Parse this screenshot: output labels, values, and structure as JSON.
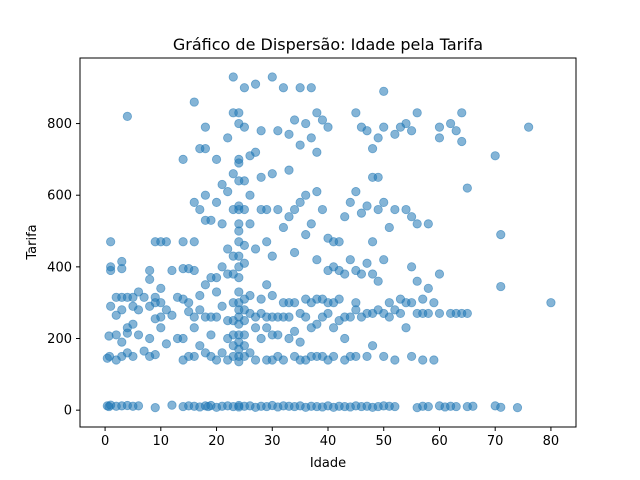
{
  "chart_data": {
    "type": "scatter",
    "title": "Gráfico de Dispersão: Idade pela Tarifa",
    "xlabel": "Idade",
    "ylabel": "Tarifa",
    "xlim": [
      -4.5,
      84.5
    ],
    "ylim": [
      -47,
      983
    ],
    "xticks": [
      0,
      10,
      20,
      30,
      40,
      50,
      60,
      70,
      80
    ],
    "yticks": [
      0,
      200,
      400,
      600,
      800
    ],
    "grid": false,
    "marker_color": "#1f77b4",
    "marker_alpha": 0.55,
    "points": [
      [
        0.4,
        12
      ],
      [
        0.7,
        10
      ],
      [
        1,
        14
      ],
      [
        2,
        11
      ],
      [
        3,
        12
      ],
      [
        4,
        13
      ],
      [
        5,
        11
      ],
      [
        6,
        12
      ],
      [
        9,
        7
      ],
      [
        12,
        14
      ],
      [
        14,
        10
      ],
      [
        15,
        12
      ],
      [
        16,
        11
      ],
      [
        17,
        9
      ],
      [
        18,
        12
      ],
      [
        18.5,
        10
      ],
      [
        19,
        13
      ],
      [
        20,
        8
      ],
      [
        21,
        11
      ],
      [
        22,
        12
      ],
      [
        23,
        10
      ],
      [
        24,
        13
      ],
      [
        24,
        9
      ],
      [
        25,
        11
      ],
      [
        26,
        12
      ],
      [
        27,
        8
      ],
      [
        28,
        11
      ],
      [
        29,
        10
      ],
      [
        30,
        13
      ],
      [
        31,
        9
      ],
      [
        32,
        12
      ],
      [
        33,
        11
      ],
      [
        34,
        10
      ],
      [
        35,
        12
      ],
      [
        36,
        8
      ],
      [
        37,
        11
      ],
      [
        38,
        10
      ],
      [
        39,
        9
      ],
      [
        40,
        12
      ],
      [
        41,
        8
      ],
      [
        42,
        11
      ],
      [
        43,
        10
      ],
      [
        44,
        9
      ],
      [
        45,
        12
      ],
      [
        46,
        10
      ],
      [
        47,
        11
      ],
      [
        48,
        8
      ],
      [
        49,
        10
      ],
      [
        50,
        12
      ],
      [
        51,
        11
      ],
      [
        52,
        10
      ],
      [
        56,
        7
      ],
      [
        57,
        11
      ],
      [
        58,
        10
      ],
      [
        60,
        12
      ],
      [
        61,
        9
      ],
      [
        62,
        11
      ],
      [
        63,
        10
      ],
      [
        65,
        10
      ],
      [
        66,
        11
      ],
      [
        70,
        12
      ],
      [
        71,
        8
      ],
      [
        74,
        7
      ],
      [
        0.4,
        145
      ],
      [
        0.7,
        207
      ],
      [
        0.8,
        150
      ],
      [
        1,
        470
      ],
      [
        1,
        390
      ],
      [
        1,
        400
      ],
      [
        1,
        290
      ],
      [
        2,
        315
      ],
      [
        2,
        265
      ],
      [
        2,
        210
      ],
      [
        2,
        140
      ],
      [
        3,
        415
      ],
      [
        3,
        395
      ],
      [
        3,
        315
      ],
      [
        3,
        280
      ],
      [
        3,
        190
      ],
      [
        3,
        150
      ],
      [
        4,
        820
      ],
      [
        4,
        315
      ],
      [
        4,
        230
      ],
      [
        4,
        215
      ],
      [
        4,
        160
      ],
      [
        5,
        315
      ],
      [
        5,
        290
      ],
      [
        5,
        240
      ],
      [
        5,
        150
      ],
      [
        6,
        330
      ],
      [
        6,
        280
      ],
      [
        6,
        210
      ],
      [
        7,
        315
      ],
      [
        7,
        165
      ],
      [
        8,
        390
      ],
      [
        8,
        365
      ],
      [
        8,
        290
      ],
      [
        8,
        200
      ],
      [
        8,
        150
      ],
      [
        9,
        470
      ],
      [
        9,
        315
      ],
      [
        9,
        300
      ],
      [
        9,
        255
      ],
      [
        9,
        155
      ],
      [
        10,
        470
      ],
      [
        10,
        340
      ],
      [
        10,
        300
      ],
      [
        10,
        260
      ],
      [
        10,
        230
      ],
      [
        11,
        470
      ],
      [
        11,
        280
      ],
      [
        11,
        185
      ],
      [
        12,
        390
      ],
      [
        12,
        265
      ],
      [
        13,
        315
      ],
      [
        13,
        200
      ],
      [
        14,
        700
      ],
      [
        14,
        470
      ],
      [
        14,
        395
      ],
      [
        14,
        310
      ],
      [
        14,
        200
      ],
      [
        14,
        140
      ],
      [
        15,
        395
      ],
      [
        15,
        300
      ],
      [
        15,
        275
      ],
      [
        15,
        150
      ],
      [
        16,
        860
      ],
      [
        16,
        580
      ],
      [
        16,
        470
      ],
      [
        16,
        390
      ],
      [
        16,
        260
      ],
      [
        16,
        230
      ],
      [
        16,
        150
      ],
      [
        17,
        730
      ],
      [
        17,
        560
      ],
      [
        17,
        320
      ],
      [
        17,
        280
      ],
      [
        17,
        180
      ],
      [
        18,
        790
      ],
      [
        18,
        730
      ],
      [
        18,
        600
      ],
      [
        18,
        530
      ],
      [
        18,
        350
      ],
      [
        18,
        260
      ],
      [
        18,
        160
      ],
      [
        19,
        530
      ],
      [
        19,
        370
      ],
      [
        19,
        260
      ],
      [
        19,
        210
      ],
      [
        19,
        150
      ],
      [
        20,
        700
      ],
      [
        20,
        580
      ],
      [
        20,
        370
      ],
      [
        20,
        330
      ],
      [
        20,
        260
      ],
      [
        20,
        140
      ],
      [
        21,
        630
      ],
      [
        21,
        520
      ],
      [
        21,
        400
      ],
      [
        21,
        290
      ],
      [
        21,
        160
      ],
      [
        22,
        760
      ],
      [
        22,
        610
      ],
      [
        22,
        450
      ],
      [
        22,
        380
      ],
      [
        22,
        250
      ],
      [
        22,
        200
      ],
      [
        22,
        140
      ],
      [
        23,
        930
      ],
      [
        23,
        830
      ],
      [
        23,
        660
      ],
      [
        23,
        560
      ],
      [
        23,
        430
      ],
      [
        23,
        380
      ],
      [
        23,
        300
      ],
      [
        23,
        250
      ],
      [
        23,
        210
      ],
      [
        23,
        180
      ],
      [
        23,
        150
      ],
      [
        24,
        830
      ],
      [
        24,
        800
      ],
      [
        24,
        700
      ],
      [
        24,
        690
      ],
      [
        24,
        640
      ],
      [
        24,
        570
      ],
      [
        24,
        560
      ],
      [
        24,
        520
      ],
      [
        24,
        500
      ],
      [
        24,
        470
      ],
      [
        24,
        430
      ],
      [
        24,
        400
      ],
      [
        24,
        370
      ],
      [
        24,
        330
      ],
      [
        24,
        300
      ],
      [
        24,
        280
      ],
      [
        24,
        260
      ],
      [
        24,
        240
      ],
      [
        24,
        210
      ],
      [
        24,
        190
      ],
      [
        24,
        170
      ],
      [
        24,
        150
      ],
      [
        24,
        135
      ],
      [
        25,
        900
      ],
      [
        25,
        790
      ],
      [
        25,
        640
      ],
      [
        25,
        560
      ],
      [
        25,
        460
      ],
      [
        25,
        410
      ],
      [
        25,
        310
      ],
      [
        25,
        280
      ],
      [
        25,
        250
      ],
      [
        25,
        210
      ],
      [
        25,
        180
      ],
      [
        25,
        150
      ],
      [
        26,
        710
      ],
      [
        26,
        600
      ],
      [
        26,
        520
      ],
      [
        26,
        320
      ],
      [
        26,
        270
      ],
      [
        26,
        160
      ],
      [
        27,
        910
      ],
      [
        27,
        720
      ],
      [
        27,
        450
      ],
      [
        27,
        260
      ],
      [
        27,
        230
      ],
      [
        27,
        140
      ],
      [
        28,
        780
      ],
      [
        28,
        650
      ],
      [
        28,
        560
      ],
      [
        28,
        310
      ],
      [
        28,
        270
      ],
      [
        28,
        200
      ],
      [
        29,
        560
      ],
      [
        29,
        470
      ],
      [
        29,
        350
      ],
      [
        29,
        260
      ],
      [
        29,
        230
      ],
      [
        29,
        140
      ],
      [
        30,
        930
      ],
      [
        30,
        660
      ],
      [
        30,
        430
      ],
      [
        30,
        320
      ],
      [
        30,
        260
      ],
      [
        30,
        210
      ],
      [
        30,
        140
      ],
      [
        31,
        780
      ],
      [
        31,
        560
      ],
      [
        31,
        260
      ],
      [
        31,
        210
      ],
      [
        31,
        150
      ],
      [
        32,
        900
      ],
      [
        32,
        510
      ],
      [
        32,
        300
      ],
      [
        32,
        260
      ],
      [
        32,
        140
      ],
      [
        33,
        770
      ],
      [
        33,
        670
      ],
      [
        33,
        540
      ],
      [
        33,
        300
      ],
      [
        33,
        260
      ],
      [
        33,
        200
      ],
      [
        34,
        810
      ],
      [
        34,
        560
      ],
      [
        34,
        440
      ],
      [
        34,
        300
      ],
      [
        34,
        220
      ],
      [
        34,
        150
      ],
      [
        35,
        900
      ],
      [
        35,
        740
      ],
      [
        35,
        580
      ],
      [
        35,
        270
      ],
      [
        35,
        190
      ],
      [
        35,
        140
      ],
      [
        36,
        800
      ],
      [
        36,
        600
      ],
      [
        36,
        490
      ],
      [
        36,
        310
      ],
      [
        36,
        260
      ],
      [
        36,
        140
      ],
      [
        37,
        900
      ],
      [
        37,
        760
      ],
      [
        37,
        520
      ],
      [
        37,
        300
      ],
      [
        37,
        230
      ],
      [
        37,
        150
      ],
      [
        38,
        830
      ],
      [
        38,
        720
      ],
      [
        38,
        610
      ],
      [
        38,
        420
      ],
      [
        38,
        310
      ],
      [
        38,
        240
      ],
      [
        38,
        150
      ],
      [
        39,
        810
      ],
      [
        39,
        560
      ],
      [
        39,
        310
      ],
      [
        39,
        260
      ],
      [
        39,
        150
      ],
      [
        40,
        790
      ],
      [
        40,
        480
      ],
      [
        40,
        390
      ],
      [
        40,
        300
      ],
      [
        40,
        270
      ],
      [
        40,
        140
      ],
      [
        41,
        470
      ],
      [
        41,
        400
      ],
      [
        41,
        300
      ],
      [
        41,
        230
      ],
      [
        41,
        150
      ],
      [
        42,
        470
      ],
      [
        42,
        390
      ],
      [
        42,
        310
      ],
      [
        42,
        250
      ],
      [
        43,
        540
      ],
      [
        43,
        380
      ],
      [
        43,
        260
      ],
      [
        43,
        200
      ],
      [
        43,
        140
      ],
      [
        44,
        580
      ],
      [
        44,
        420
      ],
      [
        44,
        260
      ],
      [
        44,
        150
      ],
      [
        45,
        830
      ],
      [
        45,
        610
      ],
      [
        45,
        390
      ],
      [
        45,
        300
      ],
      [
        45,
        280
      ],
      [
        45,
        150
      ],
      [
        46,
        790
      ],
      [
        46,
        550
      ],
      [
        46,
        380
      ],
      [
        46,
        260
      ],
      [
        47,
        780
      ],
      [
        47,
        570
      ],
      [
        47,
        410
      ],
      [
        47,
        270
      ],
      [
        47,
        150
      ],
      [
        48,
        730
      ],
      [
        48,
        650
      ],
      [
        48,
        470
      ],
      [
        48,
        380
      ],
      [
        48,
        270
      ],
      [
        48,
        180
      ],
      [
        49,
        760
      ],
      [
        49,
        650
      ],
      [
        49,
        560
      ],
      [
        49,
        360
      ],
      [
        49,
        280
      ],
      [
        50,
        890
      ],
      [
        50,
        790
      ],
      [
        50,
        580
      ],
      [
        50,
        420
      ],
      [
        50,
        270
      ],
      [
        50,
        150
      ],
      [
        51,
        510
      ],
      [
        51,
        300
      ],
      [
        51,
        260
      ],
      [
        52,
        770
      ],
      [
        52,
        560
      ],
      [
        52,
        280
      ],
      [
        52,
        140
      ],
      [
        53,
        790
      ],
      [
        53,
        310
      ],
      [
        53,
        270
      ],
      [
        54,
        800
      ],
      [
        54,
        560
      ],
      [
        54,
        300
      ],
      [
        54,
        230
      ],
      [
        55,
        780
      ],
      [
        55,
        540
      ],
      [
        55,
        400
      ],
      [
        55,
        300
      ],
      [
        55,
        150
      ],
      [
        56,
        830
      ],
      [
        56,
        520
      ],
      [
        56,
        360
      ],
      [
        56,
        270
      ],
      [
        57,
        310
      ],
      [
        57,
        270
      ],
      [
        57,
        140
      ],
      [
        58,
        520
      ],
      [
        58,
        340
      ],
      [
        58,
        270
      ],
      [
        59,
        300
      ],
      [
        59,
        140
      ],
      [
        60,
        790
      ],
      [
        60,
        760
      ],
      [
        60,
        380
      ],
      [
        60,
        270
      ],
      [
        62,
        800
      ],
      [
        62,
        270
      ],
      [
        63,
        780
      ],
      [
        63,
        270
      ],
      [
        64,
        830
      ],
      [
        64,
        750
      ],
      [
        64,
        270
      ],
      [
        65,
        620
      ],
      [
        65,
        270
      ],
      [
        70,
        710
      ],
      [
        71,
        490
      ],
      [
        71,
        345
      ],
      [
        76,
        790
      ],
      [
        80,
        300
      ]
    ]
  }
}
